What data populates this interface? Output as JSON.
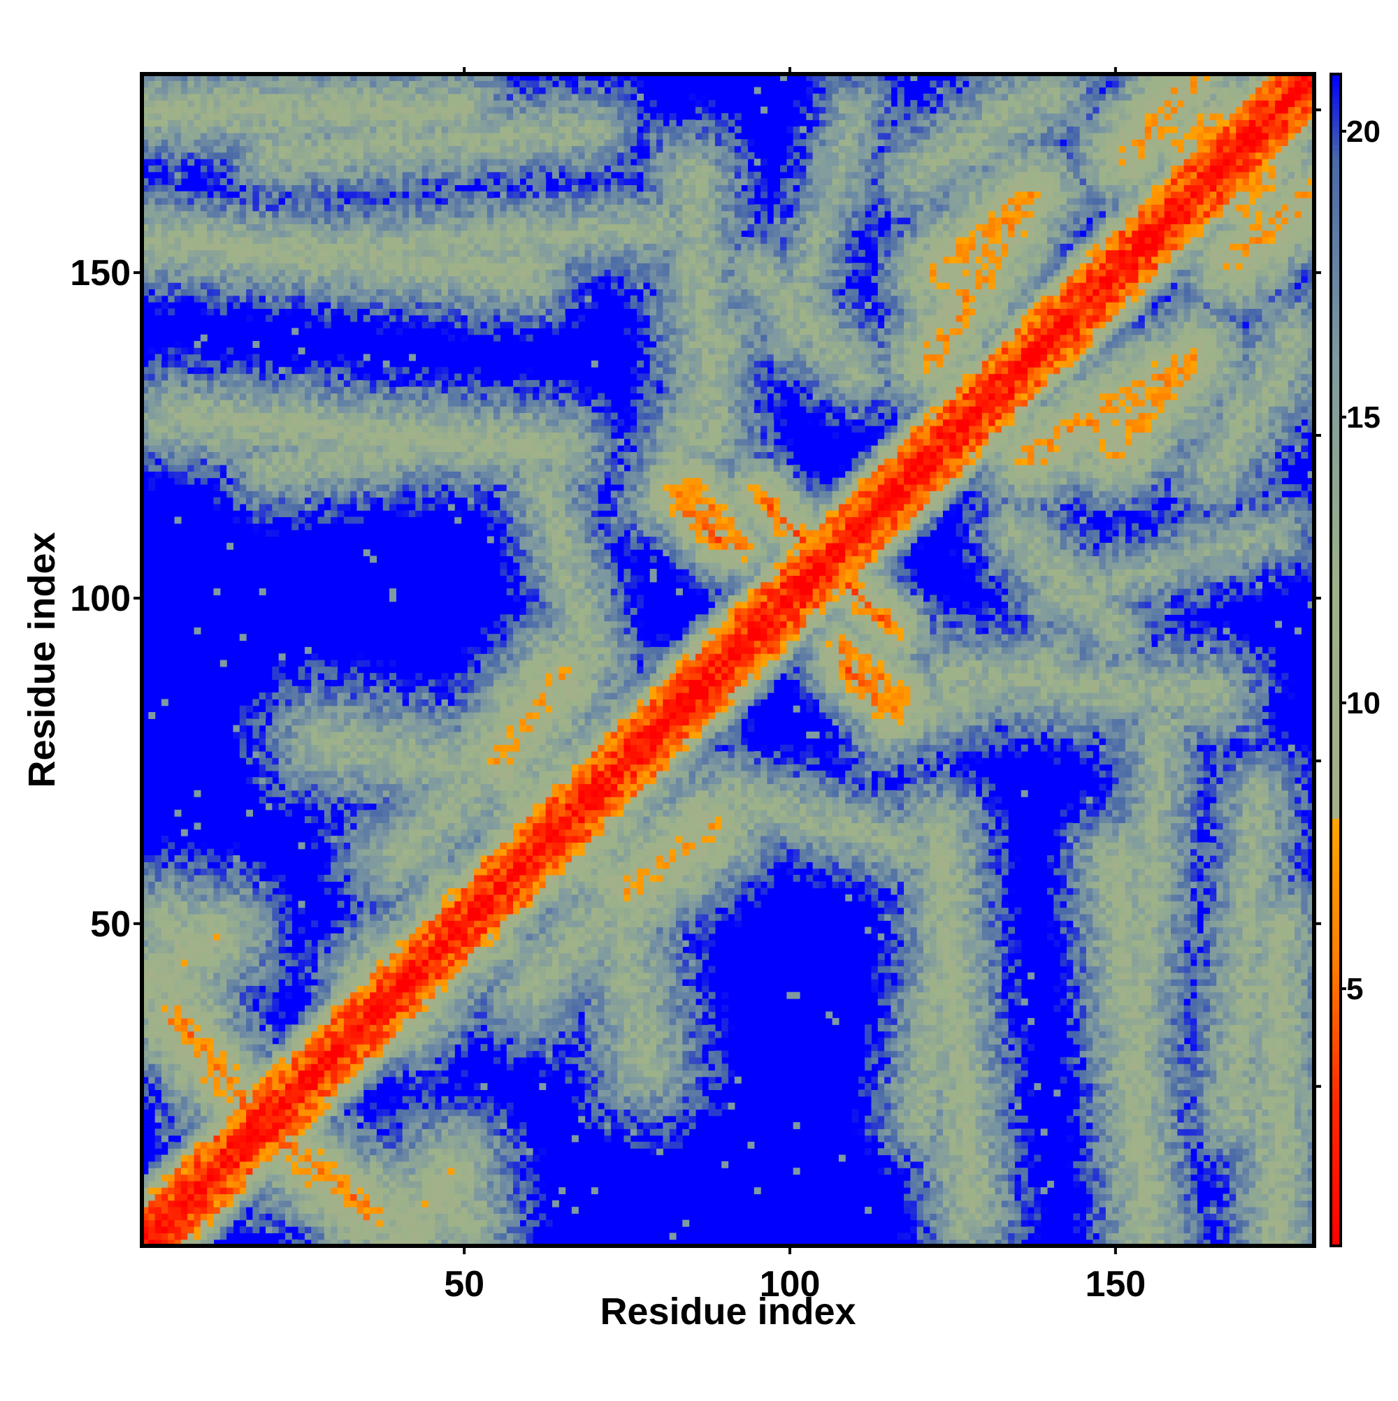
{
  "chart_data": {
    "type": "heatmap",
    "title": "",
    "xlabel": "Residue index",
    "ylabel": "Residue index",
    "n_residues": 180,
    "xlim": [
      1,
      180
    ],
    "ylim": [
      1,
      180
    ],
    "x_ticks": [
      50,
      100,
      150
    ],
    "y_ticks": [
      50,
      100,
      150
    ],
    "x_tick_labels": [
      "50",
      "100",
      "150"
    ],
    "y_tick_labels": [
      "50",
      "100",
      "150"
    ],
    "grid": false,
    "legend": "colorbar-right",
    "colorbar": {
      "range": [
        0.5,
        21
      ],
      "ticks": [
        5,
        10,
        15,
        20
      ],
      "tick_labels": [
        "5",
        "10",
        "15",
        "20"
      ],
      "stops": [
        {
          "value": 0.5,
          "color": "#ff0000"
        },
        {
          "value": 3.0,
          "color": "#ff2a00"
        },
        {
          "value": 5.5,
          "color": "#ff7f00"
        },
        {
          "value": 8.0,
          "color": "#ffa500"
        },
        {
          "value": 8.01,
          "color": "#a5b08a"
        },
        {
          "value": 12.0,
          "color": "#9db28a"
        },
        {
          "value": 16.0,
          "color": "#7f9aa0"
        },
        {
          "value": 19.5,
          "color": "#4a6aa8"
        },
        {
          "value": 21.0,
          "color": "#0000ff"
        }
      ]
    },
    "cutoff_color": "#0000ff",
    "diagonal": {
      "width_residues": 3.5,
      "min_distance": 0.5,
      "scale": 0.6
    },
    "contact_segments": [
      {
        "from": [
          20,
          18
        ],
        "to": [
          35,
          6
        ],
        "width": 2.2,
        "distance": 6
      },
      {
        "from": [
          38,
          40
        ],
        "to": [
          52,
          50
        ],
        "width": 3.0,
        "distance": 7
      },
      {
        "from": [
          60,
          65
        ],
        "to": [
          80,
          80
        ],
        "width": 3.0,
        "distance": 8
      },
      {
        "from": [
          75,
          55
        ],
        "to": [
          88,
          65
        ],
        "width": 3.0,
        "distance": 8
      },
      {
        "from": [
          85,
          118
        ],
        "to": [
          92,
          108
        ],
        "width": 1.6,
        "distance": 5.5
      },
      {
        "from": [
          95,
          116
        ],
        "to": [
          115,
          96
        ],
        "width": 1.6,
        "distance": 5.5
      },
      {
        "from": [
          108,
          90
        ],
        "to": [
          116,
          82
        ],
        "width": 1.6,
        "distance": 5.5
      },
      {
        "from": [
          122,
          137
        ],
        "to": [
          135,
          159
        ],
        "width": 2.5,
        "distance": 7
      },
      {
        "from": [
          150,
          123
        ],
        "to": [
          162,
          137
        ],
        "width": 2.5,
        "distance": 7
      },
      {
        "from": [
          160,
          170
        ],
        "to": [
          178,
          178
        ],
        "width": 2.5,
        "distance": 7
      },
      {
        "from": [
          168,
          152
        ],
        "to": [
          180,
          162
        ],
        "width": 2.5,
        "distance": 7
      },
      {
        "from": [
          1,
          40
        ],
        "to": [
          12,
          48
        ],
        "width": 3.5,
        "distance": 10
      },
      {
        "from": [
          1,
          175
        ],
        "to": [
          50,
          175
        ],
        "width": 3.0,
        "distance": 11
      },
      {
        "from": [
          1,
          155
        ],
        "to": [
          60,
          150
        ],
        "width": 3.0,
        "distance": 11
      },
      {
        "from": [
          5,
          128
        ],
        "to": [
          65,
          123
        ],
        "width": 3.0,
        "distance": 11
      },
      {
        "from": [
          28,
          78
        ],
        "to": [
          70,
          70
        ],
        "width": 4.0,
        "distance": 12
      },
      {
        "from": [
          60,
          40
        ],
        "to": [
          80,
          60
        ],
        "width": 4.0,
        "distance": 12
      },
      {
        "from": [
          62,
          118
        ],
        "to": [
          70,
          90
        ],
        "width": 3.0,
        "distance": 12
      },
      {
        "from": [
          120,
          20
        ],
        "to": [
          125,
          60
        ],
        "width": 3.0,
        "distance": 12
      },
      {
        "from": [
          153,
          20
        ],
        "to": [
          157,
          80
        ],
        "width": 3.0,
        "distance": 12
      },
      {
        "from": [
          168,
          20
        ],
        "to": [
          172,
          70
        ],
        "width": 3.0,
        "distance": 12
      },
      {
        "from": [
          125,
          88
        ],
        "to": [
          165,
          85
        ],
        "width": 3.5,
        "distance": 12
      },
      {
        "from": [
          120,
          165
        ],
        "to": [
          140,
          178
        ],
        "width": 3.5,
        "distance": 12
      },
      {
        "from": [
          95,
          150
        ],
        "to": [
          110,
          135
        ],
        "width": 3.0,
        "distance": 12
      },
      {
        "from": [
          80,
          115
        ],
        "to": [
          90,
          140
        ],
        "width": 3.0,
        "distance": 12
      },
      {
        "from": [
          140,
          100
        ],
        "to": [
          175,
          110
        ],
        "width": 3.0,
        "distance": 13
      },
      {
        "from": [
          25,
          12
        ],
        "to": [
          50,
          5
        ],
        "width": 3.5,
        "distance": 11
      }
    ],
    "noise_seed": 7
  }
}
